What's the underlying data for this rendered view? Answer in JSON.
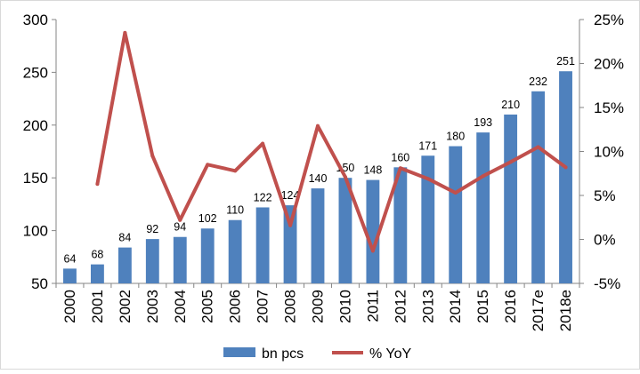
{
  "chart_data": {
    "type": "bar",
    "categories": [
      "2000",
      "2001",
      "2002",
      "2003",
      "2004",
      "2005",
      "2006",
      "2007",
      "2008",
      "2009",
      "2010",
      "2011",
      "2012",
      "2013",
      "2014",
      "2015",
      "2016",
      "2017e",
      "2018e"
    ],
    "series": [
      {
        "name": "bn pcs",
        "type": "bar",
        "axis": "left",
        "color": "#4F81BD",
        "values": [
          64,
          68,
          84,
          92,
          94,
          102,
          110,
          122,
          124,
          140,
          150,
          148,
          160,
          171,
          180,
          193,
          210,
          232,
          251
        ],
        "value_labels": [
          "64",
          "68",
          "84",
          "92",
          "94",
          "102",
          "110",
          "122",
          "124",
          "140",
          "150",
          "148",
          "160",
          "171",
          "180",
          "193",
          "210",
          "232",
          "251"
        ]
      },
      {
        "name": "% YoY",
        "type": "line",
        "axis": "right",
        "color": "#C0504D",
        "values": [
          null,
          6.3,
          23.5,
          9.5,
          2.2,
          8.5,
          7.8,
          10.9,
          1.6,
          12.9,
          7.1,
          -1.3,
          8.1,
          6.9,
          5.3,
          7.2,
          8.8,
          10.5,
          8.2
        ]
      }
    ],
    "y_left": {
      "min": 50,
      "max": 300,
      "ticks": [
        "50",
        "100",
        "150",
        "200",
        "250",
        "300"
      ]
    },
    "y_right": {
      "min": -5,
      "max": 25,
      "ticks": [
        "-5%",
        "0%",
        "5%",
        "10%",
        "15%",
        "20%",
        "25%"
      ]
    },
    "grid": false,
    "legend_position": "bottom"
  }
}
